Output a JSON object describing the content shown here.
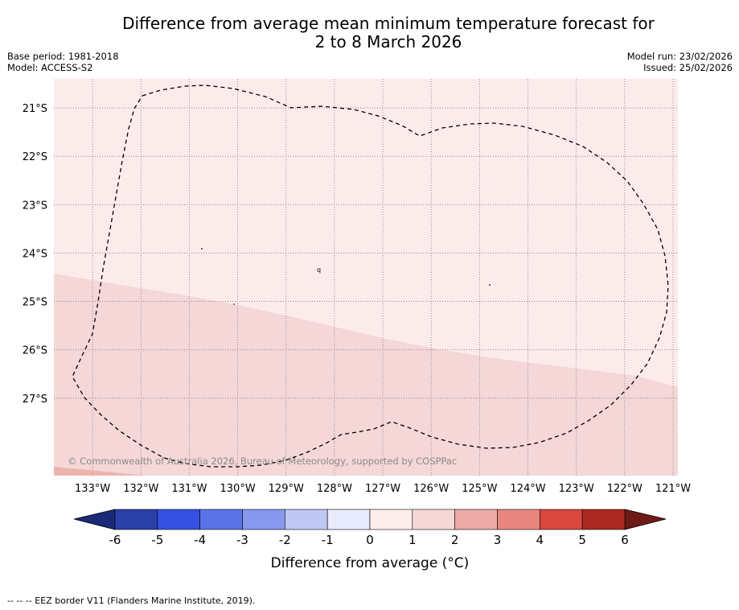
{
  "title": {
    "line1": "Difference from average mean minimum temperature forecast for",
    "line2": "2 to 8 March 2026"
  },
  "info_left": {
    "base_period": "Base period: 1981-2018",
    "model": "Model: ACCESS-S2"
  },
  "info_right": {
    "model_run": "Model run: 23/02/2026",
    "issued": "Issued: 25/02/2026"
  },
  "map": {
    "lon_range": [
      -133.8,
      -120.9
    ],
    "lat_range": [
      -28.6,
      -20.4
    ],
    "lat_labels": [
      "21°S",
      "22°S",
      "23°S",
      "24°S",
      "25°S",
      "26°S",
      "27°S"
    ],
    "lat_values": [
      -21,
      -22,
      -23,
      -24,
      -25,
      -26,
      -27
    ],
    "lon_labels": [
      "133°W",
      "132°W",
      "131°W",
      "130°W",
      "129°W",
      "128°W",
      "127°W",
      "126°W",
      "125°W",
      "124°W",
      "123°W",
      "122°W",
      "121°W"
    ],
    "lon_values": [
      -133,
      -132,
      -131,
      -130,
      -129,
      -128,
      -127,
      -126,
      -125,
      -124,
      -123,
      -122,
      -121
    ],
    "anomaly_regions": [
      {
        "category": "0 to 1",
        "color": "#fbeceb"
      },
      {
        "category": "1 to 2",
        "color": "#f4d7d6"
      },
      {
        "category": "2 to 3",
        "color": "#efb3ae"
      }
    ],
    "copyright": "© Commonwealth of Australia 2026, Bureau of Meteorology, supported by COSPPac"
  },
  "colorbar": {
    "label": "Difference from average (°C)",
    "ticks": [
      "-6",
      "-5",
      "-4",
      "-3",
      "-2",
      "-1",
      "0",
      "1",
      "2",
      "3",
      "4",
      "5",
      "6"
    ],
    "under_color": "#1a2a78",
    "over_color": "#6e1a16",
    "colors": [
      "#2a3fa8",
      "#3550e2",
      "#5a74e8",
      "#8799ec",
      "#bfc8f4",
      "#e8ebfb",
      "#fdeeec",
      "#f4d7d6",
      "#ebaaa6",
      "#e9857f",
      "#d9473f",
      "#ac2822"
    ]
  },
  "footer": {
    "legend_text": "--  --  -- EEZ border V11 (Flanders Marine Institute, 2019)."
  }
}
